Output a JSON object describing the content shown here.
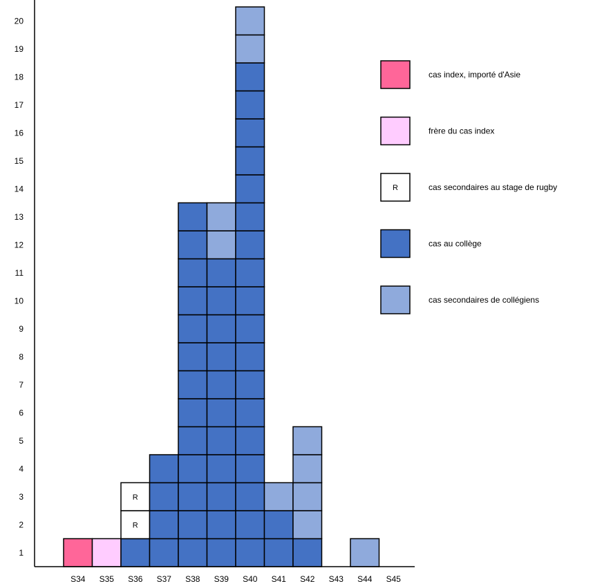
{
  "chart_data": {
    "type": "bar",
    "stacked": true,
    "title": "",
    "xlabel": "",
    "ylabel": "",
    "categories": [
      "S34",
      "S35",
      "S36",
      "S37",
      "S38",
      "S39",
      "S40",
      "S41",
      "S42",
      "S43",
      "S44",
      "S45"
    ],
    "y_ticks": [
      "1",
      "2",
      "3",
      "4",
      "5",
      "6",
      "7",
      "8",
      "9",
      "10",
      "11",
      "12",
      "13",
      "14",
      "15",
      "16",
      "17",
      "18",
      "19",
      "20"
    ],
    "ylim": [
      0,
      20
    ],
    "grid": false,
    "legend_position": "right",
    "series": [
      {
        "key": "index",
        "name": "cas index, importé d'Asie",
        "color": "#ff6699",
        "cell_label": "",
        "values": [
          1,
          0,
          0,
          0,
          0,
          0,
          0,
          0,
          0,
          0,
          0,
          0
        ]
      },
      {
        "key": "brother",
        "name": "frère du cas index",
        "color": "#ffccff",
        "cell_label": "",
        "values": [
          0,
          1,
          0,
          0,
          0,
          0,
          0,
          0,
          0,
          0,
          0,
          0
        ]
      },
      {
        "key": "college",
        "name": "cas au collège",
        "color": "#4472c4",
        "cell_label": "",
        "values": [
          0,
          0,
          1,
          4,
          13,
          11,
          18,
          2,
          1,
          0,
          0,
          0
        ]
      },
      {
        "key": "rugby",
        "name": "cas secondaires au stage de rugby",
        "color": "#ffffff",
        "cell_label": "R",
        "values": [
          0,
          0,
          2,
          0,
          0,
          0,
          0,
          0,
          0,
          0,
          0,
          0
        ]
      },
      {
        "key": "students",
        "name": "cas secondaires de collégiens",
        "color": "#8faadc",
        "cell_label": "",
        "values": [
          0,
          0,
          0,
          0,
          0,
          2,
          2,
          1,
          4,
          0,
          1,
          0
        ]
      }
    ],
    "stack_order": [
      "index",
      "brother",
      "college",
      "rugby",
      "students"
    ],
    "cell_outline_color": "#000000",
    "legend": [
      {
        "series": "index",
        "label": "cas index, importé d'Asie",
        "swatch_text": ""
      },
      {
        "series": "brother",
        "label": "frère du cas index",
        "swatch_text": ""
      },
      {
        "series": "rugby",
        "label": "cas secondaires au stage de rugby",
        "swatch_text": "R"
      },
      {
        "series": "college",
        "label": "cas au collège",
        "swatch_text": ""
      },
      {
        "series": "students",
        "label": "cas secondaires de collégiens",
        "swatch_text": ""
      }
    ]
  }
}
